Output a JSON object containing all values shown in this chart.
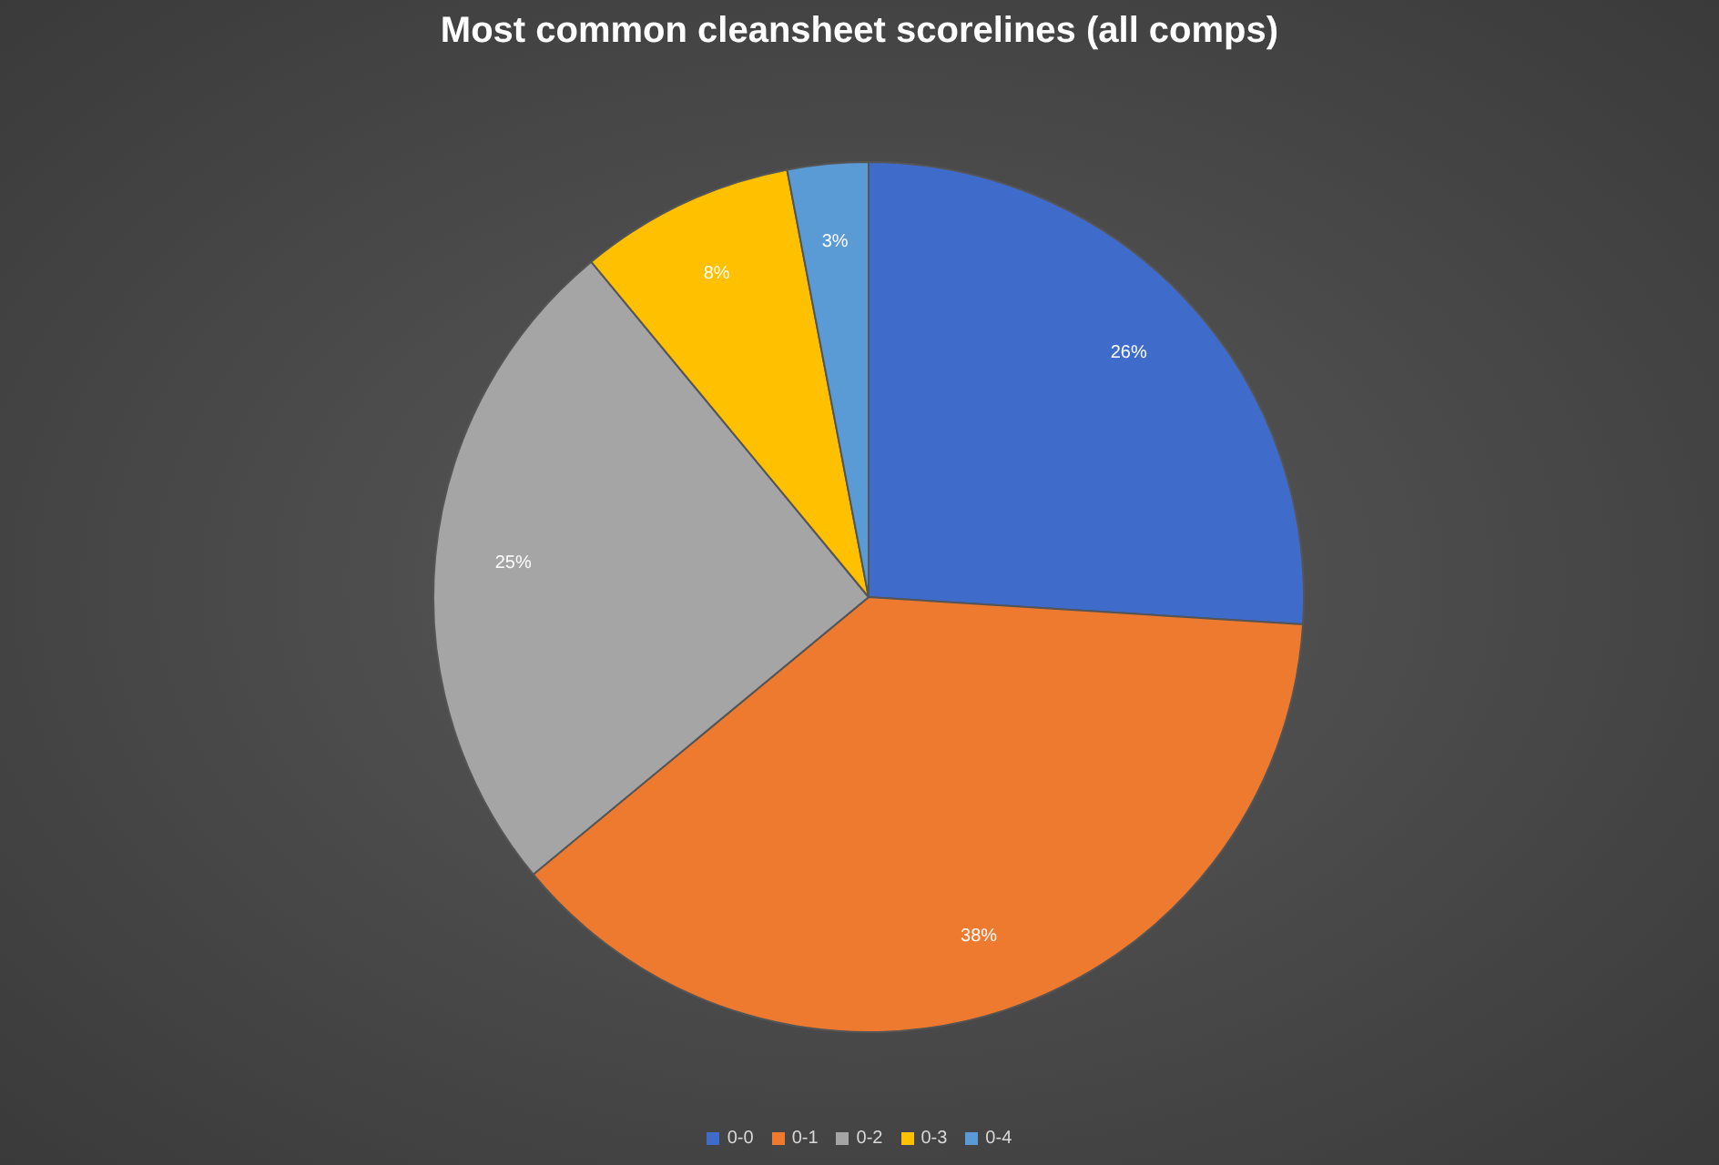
{
  "chart_data": {
    "type": "pie",
    "title": "Most common cleansheet scorelines (all comps)",
    "categories": [
      "0-0",
      "0-1",
      "0-2",
      "0-3",
      "0-4"
    ],
    "values": [
      26,
      38,
      25,
      8,
      3
    ],
    "colors": [
      "#3f6ccb",
      "#ee7a30",
      "#a5a5a5",
      "#ffc000",
      "#5b9bd5"
    ],
    "value_labels": [
      "26%",
      "38%",
      "25%",
      "8%",
      "3%"
    ],
    "legend": "bottom"
  }
}
